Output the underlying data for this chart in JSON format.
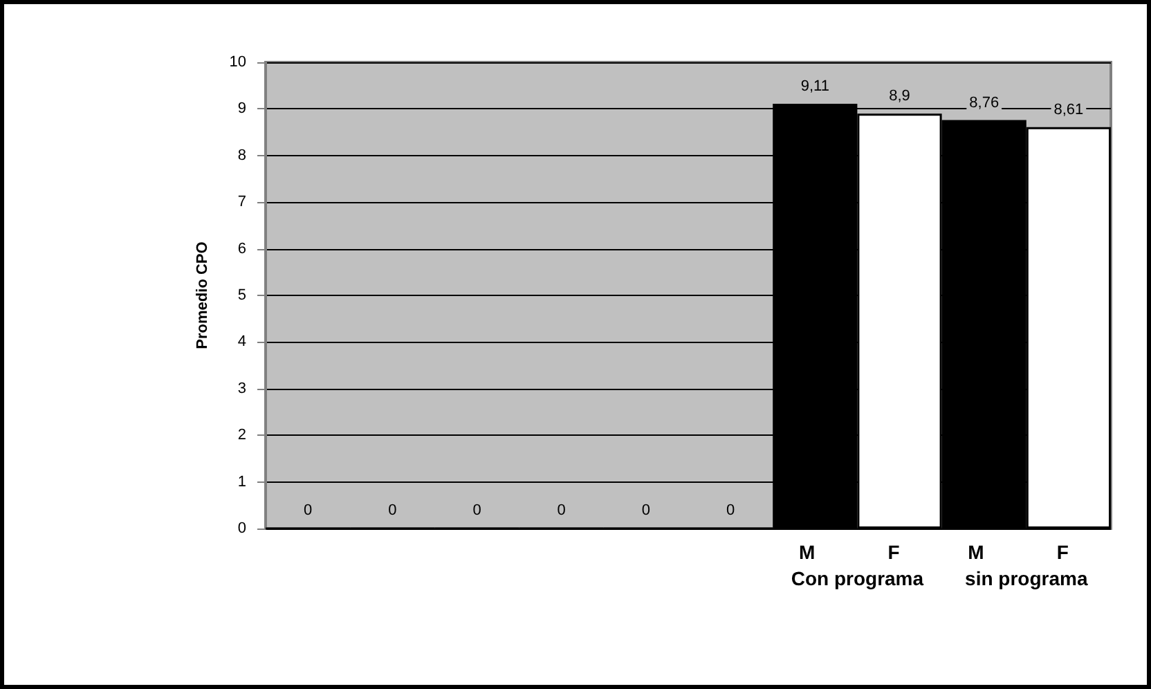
{
  "chart_data": {
    "type": "bar",
    "ylabel": "Promedio CPO",
    "categories": [
      null,
      null,
      null,
      null,
      null,
      null,
      "M",
      "F",
      "M",
      "F"
    ],
    "values": [
      0,
      0,
      0,
      0,
      0,
      0,
      9.11,
      8.9,
      8.76,
      8.61
    ],
    "value_labels": [
      "0",
      "0",
      "0",
      "0",
      "0",
      "0",
      "9,11",
      "8,9",
      "8,76",
      "8,61"
    ],
    "colors": [
      "#000000",
      "#000000",
      "#000000",
      "#000000",
      "#000000",
      "#000000",
      "#000000",
      "#ffffff",
      "#000000",
      "#ffffff"
    ],
    "ylim": [
      0,
      10
    ],
    "yticks": [
      0,
      1,
      2,
      3,
      4,
      5,
      6,
      7,
      8,
      9,
      10
    ],
    "grid": "y",
    "annotations": [
      "Con programa",
      "sin programa"
    ]
  }
}
